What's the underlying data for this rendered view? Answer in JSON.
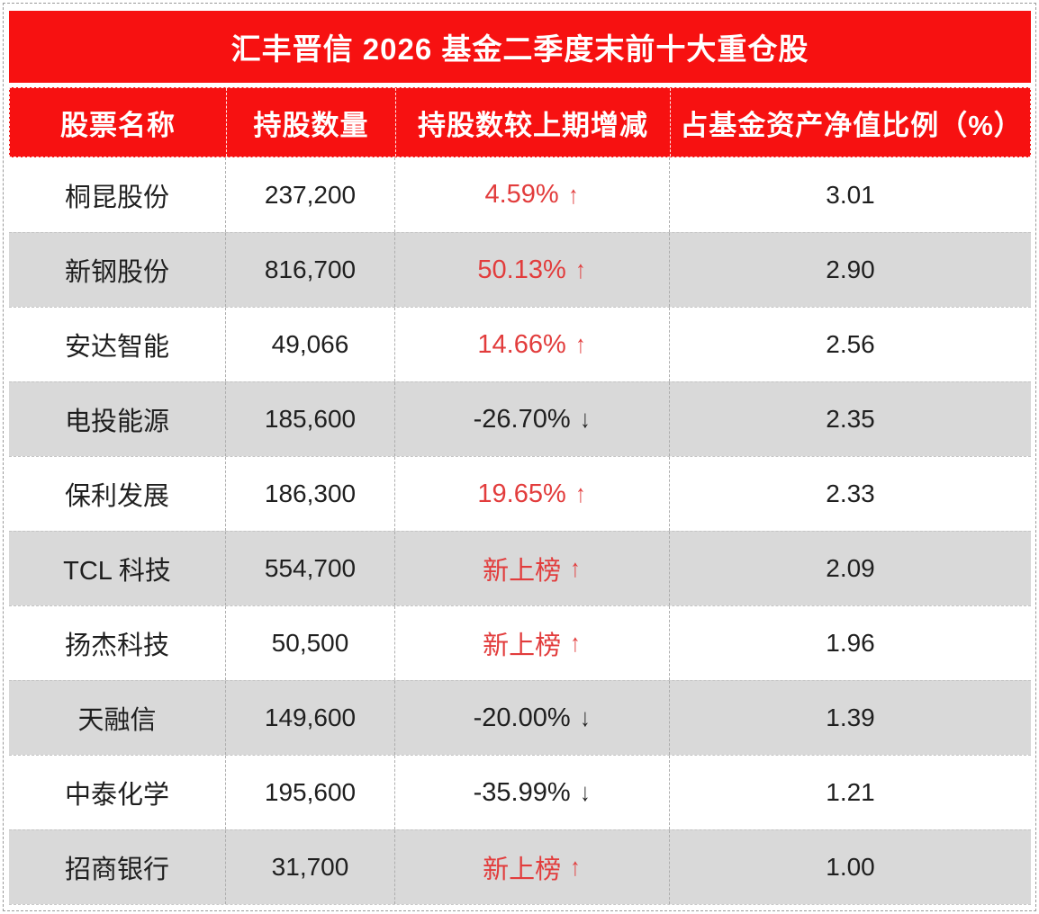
{
  "title": "汇丰晋信 2026 基金二季度末前十大重仓股",
  "columns": [
    "股票名称",
    "持股数量",
    "持股数较上期增减",
    "占基金资产净值比例（%）"
  ],
  "rows": [
    {
      "name": "桐昆股份",
      "shares": "237,200",
      "change": "4.59%",
      "arrow": "↑",
      "trend": "up",
      "ratio": "3.01"
    },
    {
      "name": "新钢股份",
      "shares": "816,700",
      "change": "50.13%",
      "arrow": "↑",
      "trend": "up",
      "ratio": "2.90"
    },
    {
      "name": "安达智能",
      "shares": "49,066",
      "change": "14.66%",
      "arrow": "↑",
      "trend": "up",
      "ratio": "2.56"
    },
    {
      "name": "电投能源",
      "shares": "185,600",
      "change": "-26.70%",
      "arrow": "↓",
      "trend": "down",
      "ratio": "2.35"
    },
    {
      "name": "保利发展",
      "shares": "186,300",
      "change": "19.65%",
      "arrow": "↑",
      "trend": "up",
      "ratio": "2.33"
    },
    {
      "name": "TCL 科技",
      "shares": "554,700",
      "change": "新上榜",
      "arrow": "↑",
      "trend": "up",
      "ratio": "2.09"
    },
    {
      "name": "扬杰科技",
      "shares": "50,500",
      "change": "新上榜",
      "arrow": "↑",
      "trend": "up",
      "ratio": "1.96"
    },
    {
      "name": "天融信",
      "shares": "149,600",
      "change": "-20.00%",
      "arrow": "↓",
      "trend": "down",
      "ratio": "1.39"
    },
    {
      "name": "中泰化学",
      "shares": "195,600",
      "change": "-35.99%",
      "arrow": "↓",
      "trend": "down",
      "ratio": "1.21"
    },
    {
      "name": "招商银行",
      "shares": "31,700",
      "change": "新上榜",
      "arrow": "↑",
      "trend": "up",
      "ratio": "1.00"
    }
  ],
  "colors": {
    "header_red": "#f71111",
    "positive_red": "#e23c3c",
    "negative_black": "#1f1f1f",
    "alt_row_gray": "#d9d9d9"
  },
  "chart_data": {
    "type": "table",
    "title": "汇丰晋信 2026 基金二季度末前十大重仓股",
    "columns": [
      "股票名称",
      "持股数量",
      "持股数较上期增减",
      "占基金资产净值比例（%）"
    ],
    "rows": [
      [
        "桐昆股份",
        "237,200",
        "4.59% ↑",
        3.01
      ],
      [
        "新钢股份",
        "816,700",
        "50.13% ↑",
        2.9
      ],
      [
        "安达智能",
        "49,066",
        "14.66% ↑",
        2.56
      ],
      [
        "电投能源",
        "185,600",
        "-26.70% ↓",
        2.35
      ],
      [
        "保利发展",
        "186,300",
        "19.65% ↑",
        2.33
      ],
      [
        "TCL 科技",
        "554,700",
        "新上榜 ↑",
        2.09
      ],
      [
        "扬杰科技",
        "50,500",
        "新上榜 ↑",
        1.96
      ],
      [
        "天融信",
        "149,600",
        "-20.00% ↓",
        1.39
      ],
      [
        "中泰化学",
        "195,600",
        "-35.99% ↓",
        1.21
      ],
      [
        "招商银行",
        "31,700",
        "新上榜 ↑",
        1.0
      ]
    ]
  }
}
